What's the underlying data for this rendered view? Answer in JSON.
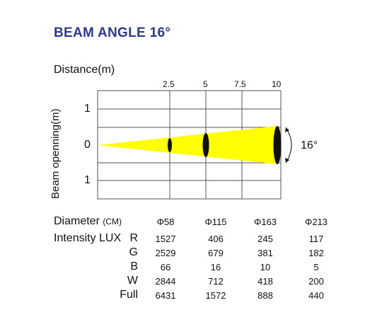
{
  "title": "BEAM ANGLE 16°",
  "distance_label": "Distance(m)",
  "y_axis_label": "Beam openning(m)",
  "x_ticks": [
    "2.5",
    "5",
    "7.5",
    "10"
  ],
  "y_ticks": [
    "1",
    "0",
    "1"
  ],
  "angle_label": "16°",
  "colors": {
    "title": "#2a3a8c",
    "beam": "#ffff00",
    "grid": "#555555"
  },
  "diameter": {
    "label": "Diameter",
    "unit": "(CM)",
    "values": [
      "Φ58",
      "Φ115",
      "Φ163",
      "Φ213"
    ]
  },
  "intensity": {
    "label": "Intensity LUX",
    "rows": [
      {
        "name": "R",
        "values": [
          "1527",
          "406",
          "245",
          "117"
        ]
      },
      {
        "name": "G",
        "values": [
          "2529",
          "679",
          "381",
          "182"
        ]
      },
      {
        "name": "B",
        "values": [
          "66",
          "16",
          "10",
          "5"
        ]
      },
      {
        "name": "W",
        "values": [
          "2844",
          "712",
          "418",
          "200"
        ]
      },
      {
        "name": "Full",
        "values": [
          "6431",
          "1572",
          "888",
          "440"
        ]
      }
    ]
  }
}
